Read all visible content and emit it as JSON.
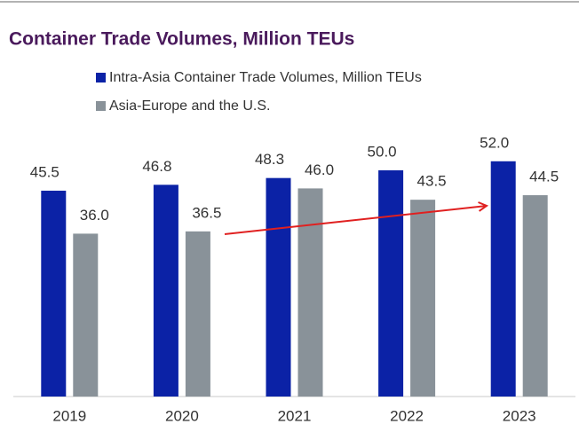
{
  "chart_data": {
    "type": "bar",
    "title": "Container Trade Volumes, Million TEUs",
    "categories": [
      "2019",
      "2020",
      "2021",
      "2022",
      "2023"
    ],
    "series": [
      {
        "name": "Intra-Asia Container Trade Volumes, Million TEUs",
        "color": "#0b22a6",
        "values": [
          45.5,
          46.8,
          48.3,
          50.0,
          52.0
        ],
        "value_labels": [
          "45.5",
          "46.8",
          "48.3",
          "50.0",
          "52.0"
        ]
      },
      {
        "name": "Asia-Europe and the U.S.",
        "color": "#899299",
        "values": [
          36.0,
          36.5,
          46.0,
          43.5,
          44.5
        ],
        "value_labels": [
          "36.0",
          "36.5",
          "46.0",
          "43.5",
          "44.5"
        ]
      }
    ]
  }
}
